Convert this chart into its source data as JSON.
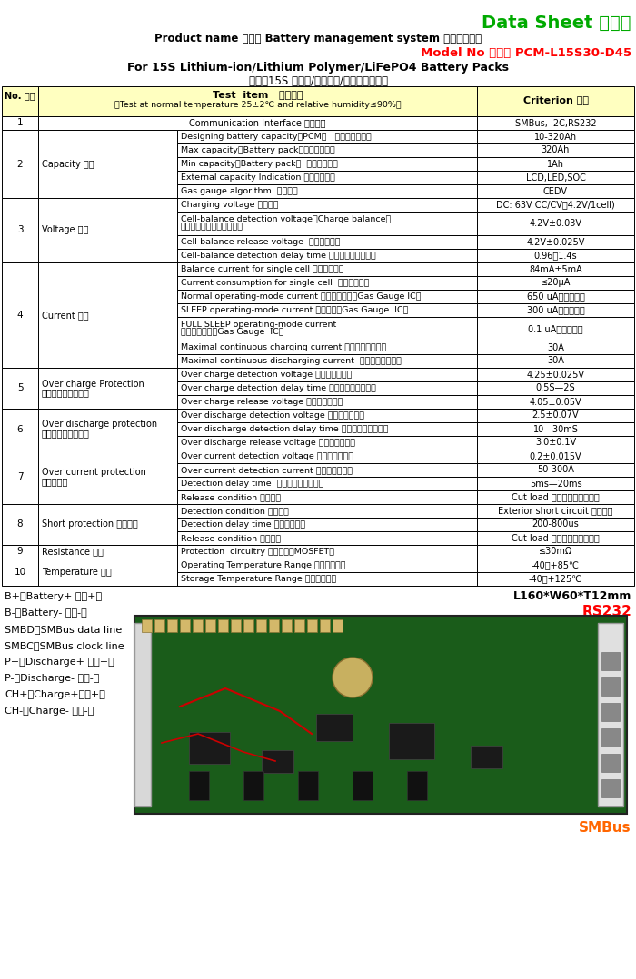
{
  "title_line1_en": "Data Sheet ",
  "title_line1_cn": "规格书",
  "title_line2": "Product name 品名： Battery management system 电池管理系统",
  "title_line3": "Model No 型号： PCM-L15S30-D45",
  "title_line4": "For 15S Lithium-ion/Lithium Polymer/LiFePO4 Battery Packs",
  "title_line5": "适用于15S 锆离子/锆聚合物/磷酸铁锆电池组",
  "header_col1": "No. 编号",
  "header_col2_line1": "Test  item   测试项目",
  "header_col2_line2": "（Test at normal temperature 25±2℃ and relative humidity≤90%）",
  "header_col3": "Criterion 标准",
  "header_bg": "#FFFFC0",
  "table_data": [
    {
      "no": "1",
      "category": "",
      "items": [
        {
          "test": "Communication Interface 通信接口",
          "criterion": "SMBus, I2C,RS232"
        }
      ]
    },
    {
      "no": "2",
      "category": "Capacity 容量",
      "items": [
        {
          "test": "Designing battery capacity（PCM）   保护板写入容量",
          "criterion": "10-320Ah"
        },
        {
          "test": "Max capacity（Battery pack）最大支持容量",
          "criterion": "320Ah"
        },
        {
          "test": "Min capacity（Battery pack）  最小支持容量",
          "criterion": "1Ah"
        },
        {
          "test": "External capacity Indication 外部容量指示",
          "criterion": "LCD,LED,SOC"
        },
        {
          "test": "Gas gauge algorithm  电量算法",
          "criterion": "CEDV"
        }
      ]
    },
    {
      "no": "3",
      "category": "Voltage 电压",
      "items": [
        {
          "test": "Charging voltage 充电电压",
          "criterion": "DC: 63V CC/CV（4.2V/1cell)"
        },
        {
          "test": "Cell-balance detection voltage（Charge balance）\n均衡开启电压（充电均衡）",
          "criterion": "4.2V±0.03V"
        },
        {
          "test": "Cell-balance release voltage  均衡截止电压",
          "criterion": "4.2V±0.025V"
        },
        {
          "test": "Cell-balance detection delay time 均衡检测调延时时间",
          "criterion": "0.96～1.4s"
        }
      ]
    },
    {
      "no": "4",
      "category": "Current 电流",
      "items": [
        {
          "test": "Balance current for single cell 单节均衡电流",
          "criterion": "84mA±5mA"
        },
        {
          "test": "Current consumption for single cell  单节消耗电流",
          "criterion": "≤20μA"
        },
        {
          "test": "Normal operating-mode current 正常工作模式（Gas Gauge IC）",
          "criterion": "650 uA（平均值）"
        },
        {
          "test": "SLEEP operating-mode current 休眠模式（Gas Gauge  IC）",
          "criterion": "300 uA（平均值）"
        },
        {
          "test": "FULL SLEEP operating-mode current\n完全休眠模式（Gas Gauge  IC）",
          "criterion": "0.1 uA（平均值）"
        },
        {
          "test": "Maximal continuous charging current 最大持续充电电流",
          "criterion": "30A"
        },
        {
          "test": "Maximal continuous discharging current  最大持续放电电流",
          "criterion": "30A"
        }
      ]
    },
    {
      "no": "5",
      "category": "Over charge Protection\n过充电保护（单节）",
      "items": [
        {
          "test": "Over charge detection voltage 过充电检测电压",
          "criterion": "4.25±0.025V"
        },
        {
          "test": "Over charge detection delay time 过充电检测延时时间",
          "criterion": "0.5S—2S"
        },
        {
          "test": "Over charge release voltage 过充电恢复电压",
          "criterion": "4.05±0.05V"
        }
      ]
    },
    {
      "no": "6",
      "category": "Over discharge protection\n过放电保护（单节）",
      "items": [
        {
          "test": "Over discharge detection voltage 过放电检测电压",
          "criterion": "2.5±0.07V"
        },
        {
          "test": "Over discharge detection delay time 过放电检测延时时间",
          "criterion": "10—30mS"
        },
        {
          "test": "Over discharge release voltage 过放电恢复电压",
          "criterion": "3.0±0.1V"
        }
      ]
    },
    {
      "no": "7",
      "category": "Over current protection\n过电流保护",
      "items": [
        {
          "test": "Over current detection voltage 过电流检测电压",
          "criterion": "0.2±0.015V"
        },
        {
          "test": "Over current detection current 过电流检测电流",
          "criterion": "50-300A"
        },
        {
          "test": "Detection delay time  过电流检测延时时间",
          "criterion": "5ms—20ms"
        },
        {
          "test": "Release condition 恢复状态",
          "criterion": "Cut load 断开负载，自动恢复"
        }
      ]
    },
    {
      "no": "8",
      "category": "Short protection 短路保护",
      "items": [
        {
          "test": "Detection condition 检测状态",
          "criterion": "Exterior short circuit 外部短路"
        },
        {
          "test": "Detection delay time 检测延时时间",
          "criterion": "200-800us"
        },
        {
          "test": "Release condition 恢复状态",
          "criterion": "Cut load 断开负载，自动恢复"
        }
      ]
    },
    {
      "no": "9",
      "category": "Resistance 内阻",
      "items": [
        {
          "test": "Protection  circuitry 保护线路（MOSFET）",
          "criterion": "≤30mΩ"
        }
      ]
    },
    {
      "no": "10",
      "category": "Temperature 温度",
      "items": [
        {
          "test": "Operating Temperature Range 工作温度范围",
          "criterion": "-40～+85℃"
        },
        {
          "test": "Storage Temperature Range 储存温度范围",
          "criterion": "-40～+125℃"
        }
      ]
    }
  ],
  "footer_left": [
    "B+：Battery+ 电池+极",
    "B-：Battery- 电池-极",
    "SMBD：SMBus data line",
    "SMBC：SMBus clock line",
    "P+：Discharge+ 放电+极",
    "P-：Discharge- 放电-极",
    "CH+：Charge+充电+极",
    "CH-：Charge- 充电-极"
  ],
  "footer_size": "L160*W60*T12mm",
  "footer_rs232": "RS232",
  "footer_smbus": "SMBus",
  "title_color": "#00AA00",
  "model_color": "#FF0000",
  "rs232_color": "#FF0000",
  "smbus_color": "#FF6600",
  "border_color": "#000000"
}
